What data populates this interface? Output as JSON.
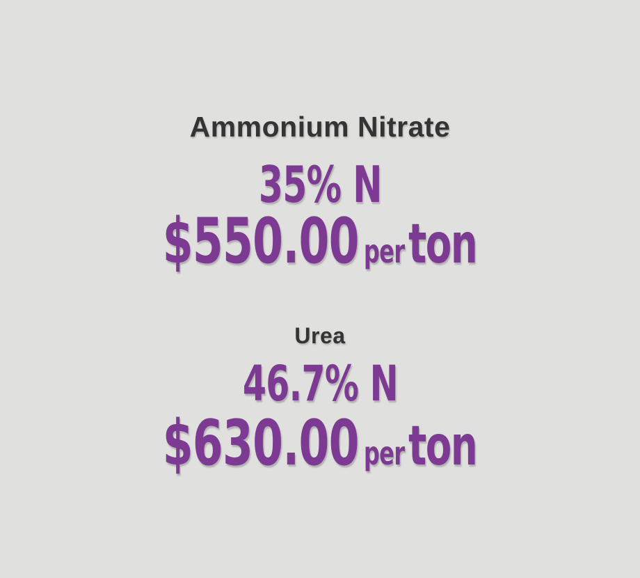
{
  "page": {
    "background_color": "#e0e0de",
    "accent_color": "#7d3a93",
    "heading_color": "#343434"
  },
  "products": [
    {
      "name": "Ammonium Nitrate",
      "nitrogen_content": "35% N",
      "price": "$550.00",
      "per_label": "per",
      "unit_label": "ton"
    },
    {
      "name": "Urea",
      "nitrogen_content": "46.7% N",
      "price": "$630.00",
      "per_label": "per",
      "unit_label": "ton"
    }
  ]
}
